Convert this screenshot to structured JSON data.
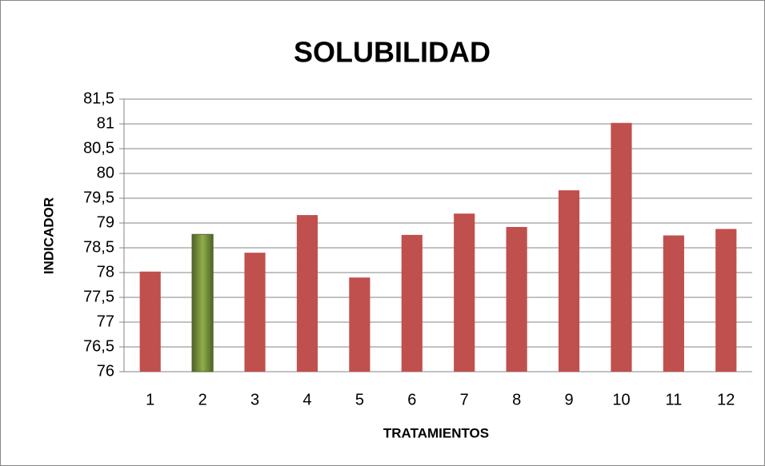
{
  "chart_data": {
    "type": "bar",
    "title": "SOLUBILIDAD",
    "x_label": "TRATAMIENTOS",
    "y_label": "INDICADOR",
    "categories": [
      "1",
      "2",
      "3",
      "4",
      "5",
      "6",
      "7",
      "8",
      "9",
      "10",
      "11",
      "12"
    ],
    "values": [
      78.02,
      78.77,
      78.4,
      79.16,
      77.9,
      78.76,
      79.19,
      78.92,
      79.66,
      81.02,
      78.75,
      78.88
    ],
    "colors": [
      "#c0504d",
      "#77933c",
      "#c0504d",
      "#c0504d",
      "#c0504d",
      "#c0504d",
      "#c0504d",
      "#c0504d",
      "#c0504d",
      "#c0504d",
      "#c0504d",
      "#c0504d"
    ],
    "ylim": [
      76,
      81.5
    ],
    "yticks": [
      76,
      {
        "value": 76.5,
        "label": "76,5"
      },
      77,
      {
        "value": 77.5,
        "label": "77,5"
      },
      78,
      {
        "value": 78.5,
        "label": "78,5"
      },
      79,
      {
        "value": 79.5,
        "label": "79,5"
      },
      80,
      {
        "value": 80.5,
        "label": "80,5"
      },
      81,
      {
        "value": 81.5,
        "label": "81,5"
      }
    ],
    "grid": true
  }
}
